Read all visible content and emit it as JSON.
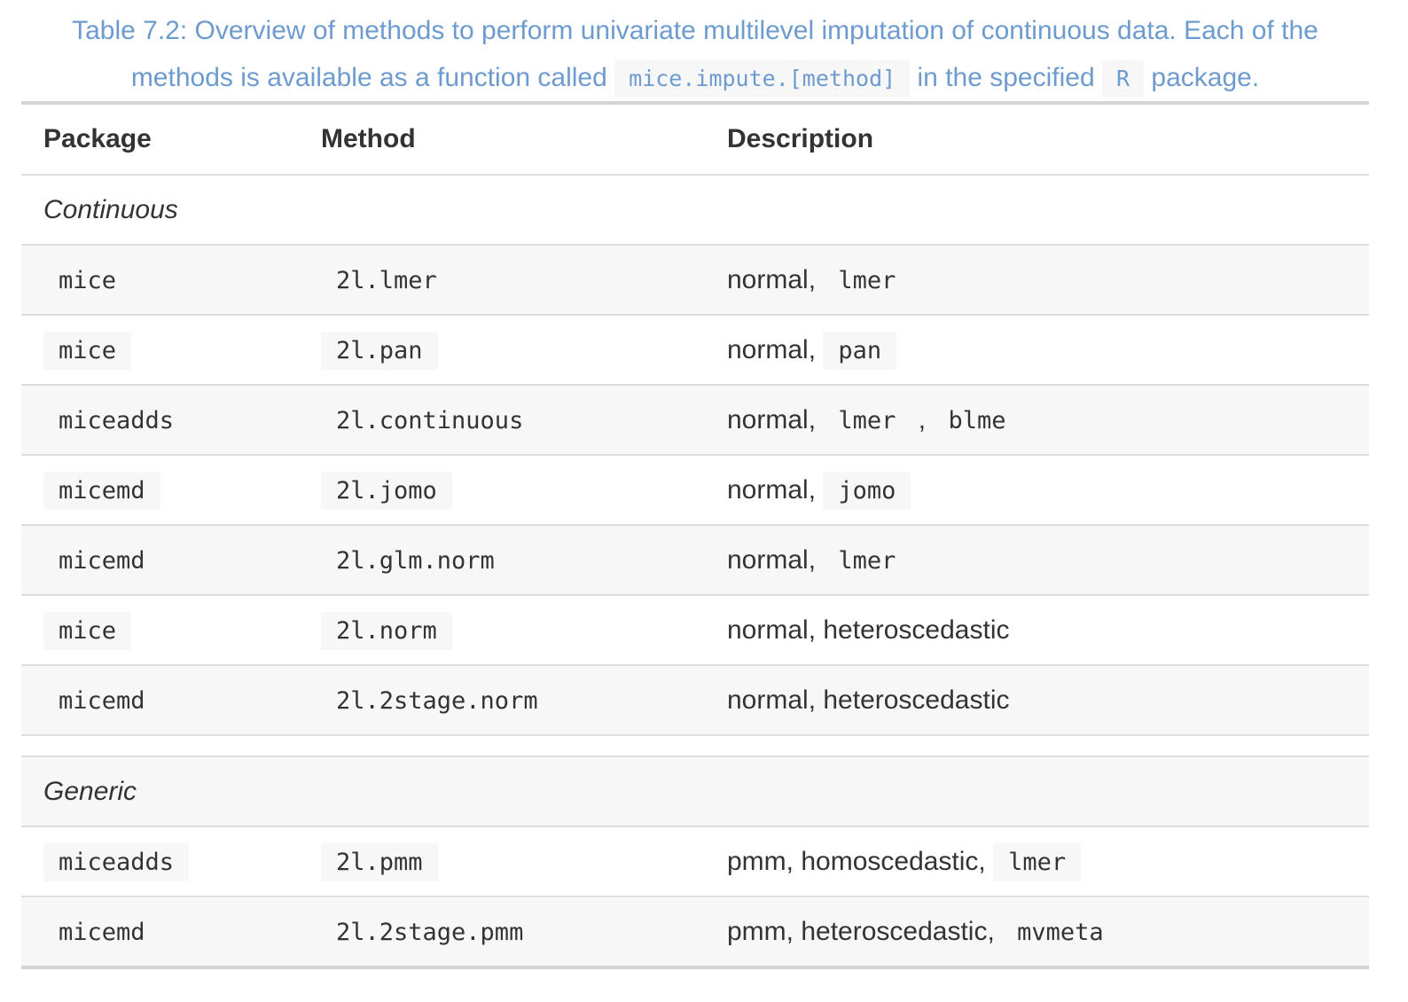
{
  "caption": {
    "prefix": "Table 7.2: Overview of methods to perform univariate multilevel imputation of continuous data. Each of the methods is available as a function called",
    "code1": "mice.impute.[method]",
    "middle": "in the specified",
    "code2": "R",
    "suffix": "package."
  },
  "headers": {
    "package": "Package",
    "method": "Method",
    "description": "Description"
  },
  "groups": {
    "continuous": "Continuous",
    "generic": "Generic"
  },
  "rows": [
    {
      "package": "mice",
      "method": "2l.lmer",
      "desc_text": "normal,",
      "desc_code": "lmer"
    },
    {
      "package": "mice",
      "method": "2l.pan",
      "desc_text": "normal,",
      "desc_code": "pan"
    },
    {
      "package": "miceadds",
      "method": "2l.continuous",
      "desc_text": "normal,",
      "desc_code": "lmer",
      "desc_sep": ",",
      "desc_code2": "blme"
    },
    {
      "package": "micemd",
      "method": "2l.jomo",
      "desc_text": "normal,",
      "desc_code": "jomo"
    },
    {
      "package": "micemd",
      "method": "2l.glm.norm",
      "desc_text": "normal,",
      "desc_code": "lmer"
    },
    {
      "package": "mice",
      "method": "2l.norm",
      "desc_text": "normal, heteroscedastic"
    },
    {
      "package": "micemd",
      "method": "2l.2stage.norm",
      "desc_text": "normal, heteroscedastic"
    },
    {
      "package": "miceadds",
      "method": "2l.pmm",
      "desc_text": "pmm, homoscedastic,",
      "desc_code": "lmer"
    },
    {
      "package": "micemd",
      "method": "2l.2stage.pmm",
      "desc_text": "pmm, heteroscedastic,",
      "desc_code": "mvmeta"
    }
  ]
}
